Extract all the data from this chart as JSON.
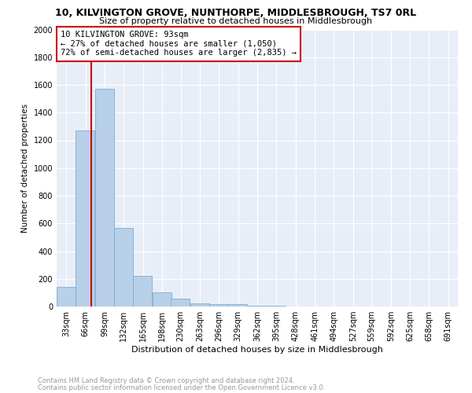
{
  "title": "10, KILVINGTON GROVE, NUNTHORPE, MIDDLESBROUGH, TS7 0RL",
  "subtitle": "Size of property relative to detached houses in Middlesbrough",
  "xlabel": "Distribution of detached houses by size in Middlesbrough",
  "ylabel": "Number of detached properties",
  "bar_color": "#b8d0e8",
  "bar_edge_color": "#7aaed0",
  "background_color": "#e8eef8",
  "grid_color": "#ffffff",
  "bins": [
    33,
    66,
    99,
    132,
    165,
    198,
    230,
    263,
    296,
    329,
    362,
    395,
    428,
    461,
    494,
    527,
    559,
    592,
    625,
    658,
    691
  ],
  "bin_labels": [
    "33sqm",
    "66sqm",
    "99sqm",
    "132sqm",
    "165sqm",
    "198sqm",
    "230sqm",
    "263sqm",
    "296sqm",
    "329sqm",
    "362sqm",
    "395sqm",
    "428sqm",
    "461sqm",
    "494sqm",
    "527sqm",
    "559sqm",
    "592sqm",
    "625sqm",
    "658sqm",
    "691sqm"
  ],
  "values": [
    140,
    1270,
    1570,
    570,
    220,
    100,
    55,
    25,
    15,
    15,
    5,
    5,
    0,
    0,
    0,
    0,
    0,
    0,
    0,
    0
  ],
  "property_size": 93,
  "vline_color": "#cc0000",
  "annotation_line1": "10 KILVINGTON GROVE: 93sqm",
  "annotation_line2": "← 27% of detached houses are smaller (1,050)",
  "annotation_line3": "72% of semi-detached houses are larger (2,835) →",
  "annotation_box_color": "#ffffff",
  "annotation_box_edge_color": "#cc0000",
  "ylim": [
    0,
    2000
  ],
  "yticks": [
    0,
    200,
    400,
    600,
    800,
    1000,
    1200,
    1400,
    1600,
    1800,
    2000
  ],
  "footnote1": "Contains HM Land Registry data © Crown copyright and database right 2024.",
  "footnote2": "Contains public sector information licensed under the Open Government Licence v3.0.",
  "footnote_color": "#999999",
  "title_fontsize": 9,
  "subtitle_fontsize": 8,
  "xlabel_fontsize": 8,
  "ylabel_fontsize": 7.5,
  "tick_fontsize": 7,
  "annot_fontsize": 7.5,
  "footnote_fontsize": 6
}
